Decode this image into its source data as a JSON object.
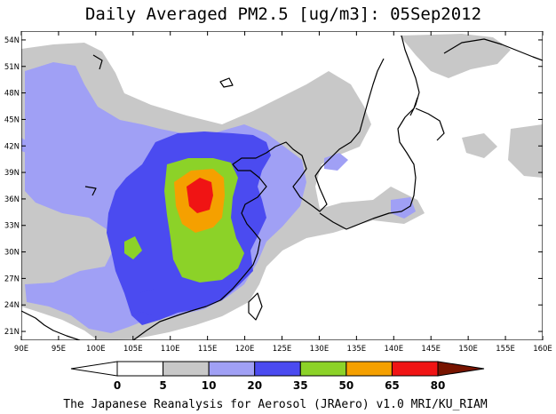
{
  "title": "Daily Averaged PM2.5 [ug/m3]: 05Sep2012",
  "credit": "The Japanese Reanalysis for Aerosol (JRAero) v1.0 MRI/KU_RIAM",
  "map": {
    "lon_range": [
      90,
      160
    ],
    "lat_range": [
      20,
      55
    ],
    "lon_ticks": [
      "90E",
      "95E",
      "100E",
      "105E",
      "110E",
      "115E",
      "120E",
      "125E",
      "130E",
      "135E",
      "140E",
      "145E",
      "150E",
      "155E",
      "160E"
    ],
    "lat_ticks": [
      "54N",
      "51N",
      "48N",
      "45N",
      "42N",
      "39N",
      "36N",
      "33N",
      "30N",
      "27N",
      "24N",
      "21N"
    ]
  },
  "colorbar": {
    "levels": [
      "0",
      "5",
      "10",
      "20",
      "35",
      "50",
      "65",
      "80"
    ],
    "colors": [
      "#ffffff",
      "#c8c8c8",
      "#a0a0f5",
      "#4b4bf0",
      "#8cd228",
      "#f5a000",
      "#f01414",
      "#781400"
    ],
    "below_color": "#ffffff",
    "above_color": "#781400"
  }
}
